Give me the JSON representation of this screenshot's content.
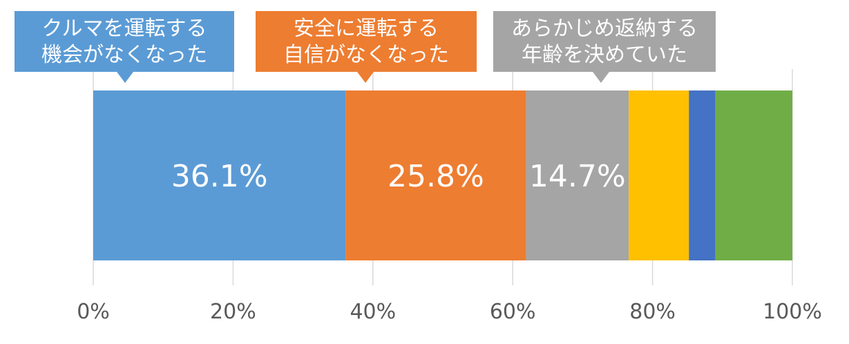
{
  "chart_data": {
    "type": "bar",
    "orientation": "horizontal",
    "stacked": true,
    "percent_stacked": true,
    "xlim": [
      0,
      100
    ],
    "ticks": [
      "0%",
      "20%",
      "40%",
      "60%",
      "80%",
      "100%"
    ],
    "grid": true,
    "series": [
      {
        "value": 36.1,
        "label": "36.1%",
        "color": "#5b9bd5",
        "callout": [
          "クルマを運転する",
          "機会がなくなった"
        ]
      },
      {
        "value": 25.8,
        "label": "25.8%",
        "color": "#ed7d31",
        "callout": [
          "安全に運転する",
          "自信がなくなった"
        ]
      },
      {
        "value": 14.7,
        "label": "14.7%",
        "color": "#a5a5a5",
        "callout": [
          "あらかじめ返納する",
          "年齢を決めていた"
        ]
      },
      {
        "value": 8.6,
        "label": "",
        "color": "#ffc000",
        "callout": []
      },
      {
        "value": 3.8,
        "label": "",
        "color": "#4472c4",
        "callout": []
      },
      {
        "value": 11.0,
        "label": "",
        "color": "#70ad47",
        "callout": []
      }
    ]
  }
}
